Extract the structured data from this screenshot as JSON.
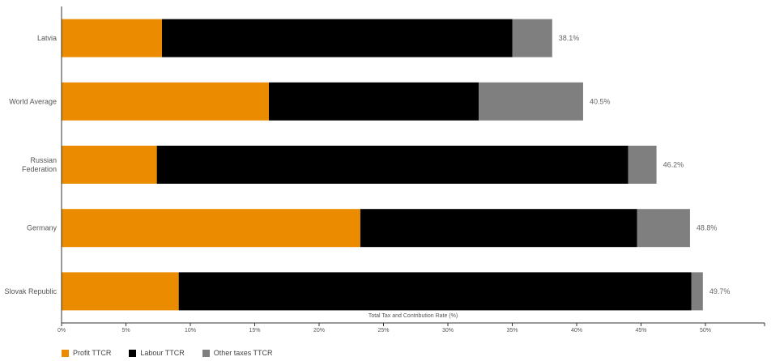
{
  "chart_data": {
    "type": "bar",
    "orientation": "horizontal",
    "stacked": true,
    "title": "",
    "xlabel": "Total Tax and Contribution Rate (%)",
    "ylabel": "",
    "xlim": [
      0,
      55
    ],
    "x_ticks": [
      0,
      5,
      10,
      15,
      20,
      25,
      30,
      35,
      40,
      45,
      50
    ],
    "x_tick_labels": [
      "0%",
      "5%",
      "10%",
      "15%",
      "20%",
      "25%",
      "30%",
      "35%",
      "40%",
      "45%",
      "50%"
    ],
    "categories": [
      "Latvia",
      "World Average",
      "Russian Federation",
      "Germany",
      "Slovak Republic"
    ],
    "category_lines": [
      [
        "Latvia"
      ],
      [
        "World Average"
      ],
      [
        "Russian",
        "Federation"
      ],
      [
        "Germany"
      ],
      [
        "Slovak Republic"
      ]
    ],
    "series": [
      {
        "name": "Profit TTCR",
        "color": "#EB8C00",
        "values": [
          7.8,
          16.1,
          7.4,
          23.2,
          9.1
        ]
      },
      {
        "name": "Labour TTCR",
        "color": "#000000",
        "values": [
          27.2,
          16.3,
          36.6,
          21.5,
          39.8
        ]
      },
      {
        "name": "Other taxes TTCR",
        "color": "#7F7F7F",
        "values": [
          3.1,
          8.1,
          2.2,
          4.1,
          0.9
        ]
      }
    ],
    "totals": [
      38.1,
      40.5,
      46.2,
      48.8,
      49.7
    ],
    "total_labels": [
      "38.1%",
      "40.5%",
      "46.2%",
      "48.8%",
      "49.7%"
    ],
    "grid": false,
    "legend_position": "bottom-left"
  }
}
